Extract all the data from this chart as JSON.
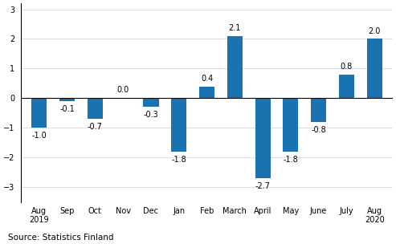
{
  "categories": [
    "Aug\n2019",
    "Sep",
    "Oct",
    "Nov",
    "Dec",
    "Jan",
    "Feb",
    "March",
    "April",
    "May",
    "June",
    "July",
    "Aug\n2020"
  ],
  "values": [
    -1.0,
    -0.1,
    -0.7,
    0.0,
    -0.3,
    -1.8,
    0.4,
    2.1,
    -2.7,
    -1.8,
    -0.8,
    0.8,
    2.0
  ],
  "bar_color": "#1a72b0",
  "ylim": [
    -3.5,
    3.2
  ],
  "yticks": [
    -3,
    -2,
    -1,
    0,
    1,
    2,
    3
  ],
  "source_text": "Source: Statistics Finland",
  "label_fontsize": 7.0,
  "tick_fontsize": 7.0,
  "source_fontsize": 7.5,
  "bar_width": 0.55
}
